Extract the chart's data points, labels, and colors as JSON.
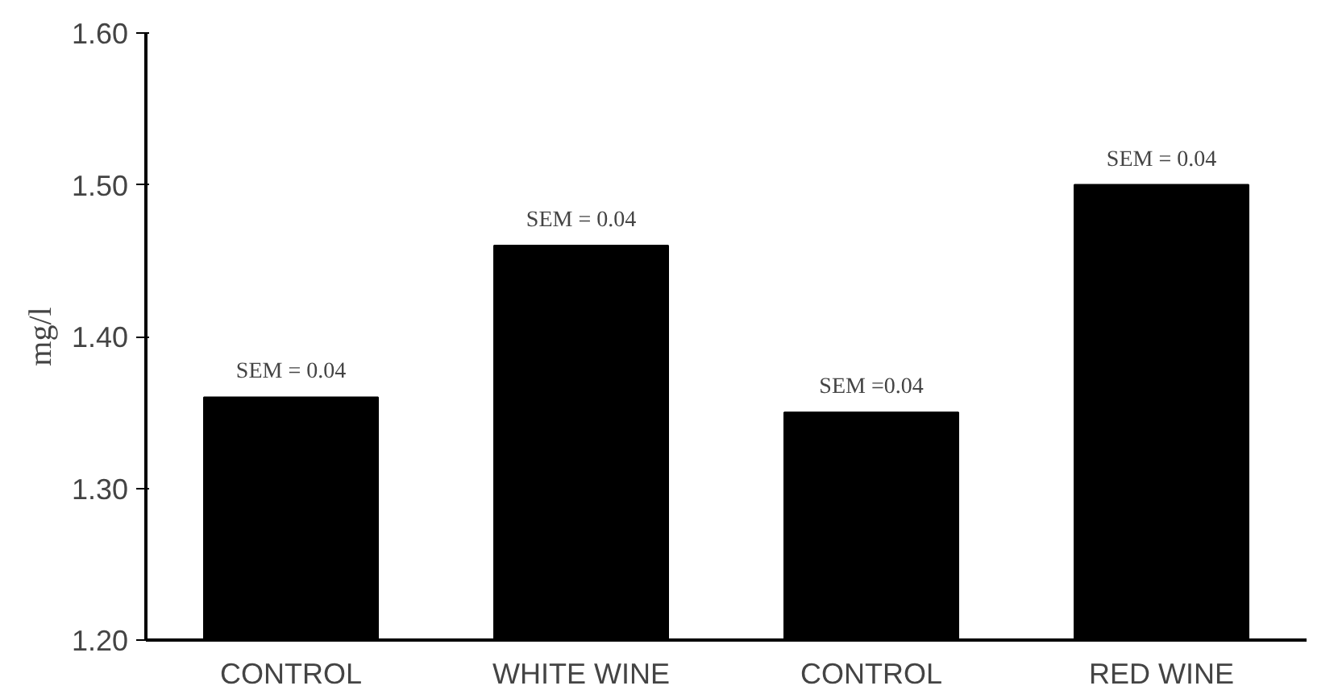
{
  "chart_data": {
    "type": "bar",
    "ylabel": "mg/l",
    "categories": [
      "CONTROL",
      "WHITE WINE",
      "CONTROL",
      "RED WINE"
    ],
    "values": [
      1.36,
      1.46,
      1.35,
      1.5
    ],
    "color": "#000000",
    "ylim": [
      1.2,
      1.6
    ],
    "yticks": [
      {
        "value": 1.2,
        "label": "1.20"
      },
      {
        "value": 1.3,
        "label": "1.30"
      },
      {
        "value": 1.4,
        "label": "1.40"
      },
      {
        "value": 1.5,
        "label": "1.50"
      },
      {
        "value": 1.6,
        "label": "1.60"
      }
    ],
    "grid": false,
    "annotations": [
      "SEM = 0.04",
      "SEM = 0.04",
      "SEM =0.04",
      "SEM = 0.04"
    ]
  }
}
